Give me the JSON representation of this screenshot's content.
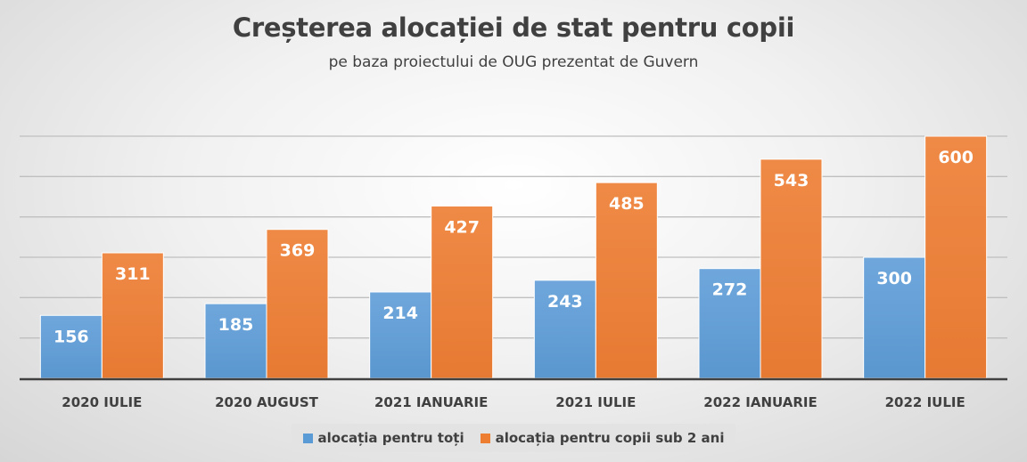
{
  "chart_data": {
    "type": "bar",
    "title": "Creșterea alocației de stat pentru copii",
    "subtitle": "pe baza proiectului de OUG prezentat de Guvern",
    "categories": [
      "2020 IULIE",
      "2020 AUGUST",
      "2021 IANUARIE",
      "2021 IULIE",
      "2022 IANUARIE",
      "2022 IULIE"
    ],
    "series": [
      {
        "name": "alocația pentru toți",
        "values": [
          156,
          185,
          214,
          243,
          272,
          300
        ],
        "color": "#5b9bd5"
      },
      {
        "name": "alocația pentru copii sub 2 ani",
        "values": [
          311,
          369,
          427,
          485,
          543,
          600
        ],
        "color": "#ed7d31"
      }
    ],
    "ylim": [
      0,
      600
    ],
    "grid": true,
    "legend_position": "bottom",
    "data_labels": true
  }
}
